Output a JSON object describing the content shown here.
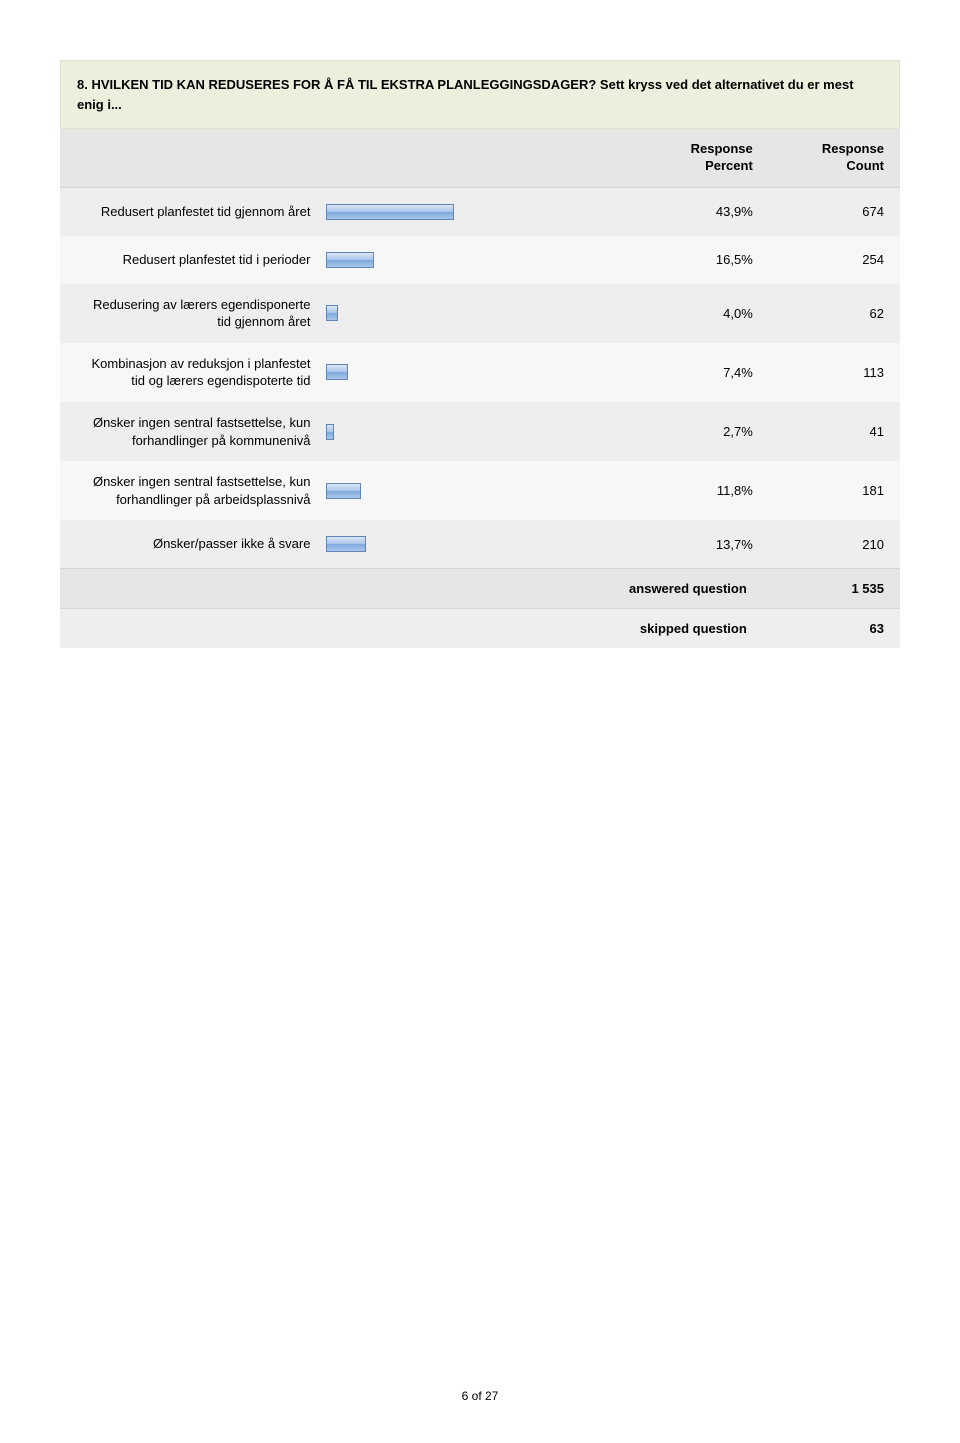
{
  "question": {
    "text": "8. HVILKEN TID KAN REDUSERES FOR Å FÅ TIL EKSTRA PLANLEGGINGSDAGER? Sett kryss ved det alternativet du er mest enig i..."
  },
  "headers": {
    "percent_line1": "Response",
    "percent_line2": "Percent",
    "count_line1": "Response",
    "count_line2": "Count"
  },
  "chart": {
    "type": "bar",
    "bar_scale_percent_per_full_width": 100,
    "rows": [
      {
        "label": "Redusert planfestet tid gjennom året",
        "percent_text": "43,9%",
        "percent": 43.9,
        "count": 674
      },
      {
        "label": "Redusert planfestet tid i perioder",
        "percent_text": "16,5%",
        "percent": 16.5,
        "count": 254
      },
      {
        "label": "Redusering av lærers egendisponerte tid gjennom året",
        "percent_text": "4,0%",
        "percent": 4.0,
        "count": 62
      },
      {
        "label": "Kombinasjon av reduksjon i planfestet tid og lærers egendispoterte tid",
        "percent_text": "7,4%",
        "percent": 7.4,
        "count": 113
      },
      {
        "label": "Ønsker ingen sentral fastsettelse, kun forhandlinger på kommunenivå",
        "percent_text": "2,7%",
        "percent": 2.7,
        "count": 41
      },
      {
        "label": "Ønsker ingen sentral fastsettelse, kun forhandlinger på arbeidsplassnivå",
        "percent_text": "11,8%",
        "percent": 11.8,
        "count": 181
      },
      {
        "label": "Ønsker/passer ikke å svare",
        "percent_text": "13,7%",
        "percent": 13.7,
        "count": 210
      }
    ]
  },
  "summary": {
    "answered_label": "answered question",
    "answered_value": "1 535",
    "skipped_label": "skipped question",
    "skipped_value": "63"
  },
  "footer": {
    "page_text": "6 of 27"
  },
  "colors": {
    "question_bg": "#eeeedd",
    "header_bg": "#e6e6e6",
    "row_alt_a": "#eeeeee",
    "row_alt_b": "#f7f7f7",
    "summary_bg_a": "#e6e6e6",
    "summary_bg_b": "#eeeeee",
    "bar_top": "#d9e6f5",
    "bar_mid": "#a9c6eb",
    "bar_bot": "#7fa9dc",
    "bar_border": "#5f86b6"
  }
}
